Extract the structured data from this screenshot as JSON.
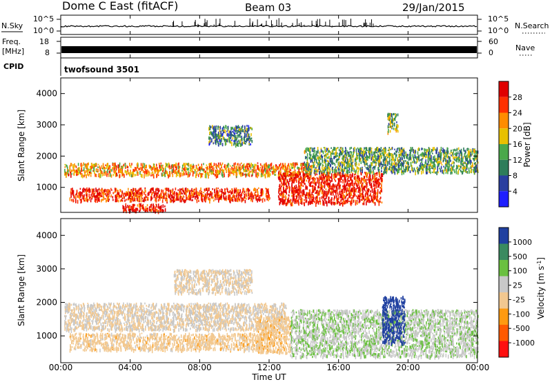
{
  "header": {
    "station": "Dome C East (fitACF)",
    "beam": "Beam 03",
    "date": "29/Jan/2015"
  },
  "noise_panel": {
    "left_label": "N.Sky",
    "right_label": "N.Search",
    "left_ticks": [
      "10^5",
      "10^0"
    ],
    "right_ticks": [
      "10^5",
      "10^0"
    ],
    "right_line_style": "dotted"
  },
  "freq_panel": {
    "left_label_1": "Freq.",
    "left_label_2": "[MHz]",
    "right_label": "Nave",
    "left_ticks": [
      "18",
      "8"
    ],
    "right_ticks": [
      "60",
      "0"
    ],
    "right_line_style": "dotted"
  },
  "cpid_panel": {
    "label": "CPID",
    "program": "twofsound 3501"
  },
  "x_axis": {
    "label": "Time UT",
    "ticks": [
      "00:00",
      "04:00",
      "08:00",
      "12:00",
      "16:00",
      "20:00",
      "00:00"
    ]
  },
  "colors": {
    "power_scale": [
      "#1f1fff",
      "#2a3f9f",
      "#2e7d5a",
      "#4aa84a",
      "#e8c000",
      "#ff8c00",
      "#ff3000",
      "#e00000"
    ],
    "velocity_scale": [
      "#ff1010",
      "#ff5a00",
      "#ff9a10",
      "#f2c890",
      "#c8c8c8",
      "#6ac040",
      "#3a8a60",
      "#2040a0"
    ]
  },
  "chart_data": [
    {
      "type": "heatmap",
      "title": "",
      "xlabel": "Time UT",
      "ylabel": "Slant Range [km]",
      "xlim": [
        "00:00",
        "24:00"
      ],
      "ylim": [
        200,
        4500
      ],
      "yticks": [
        "1000",
        "2000",
        "3000",
        "4000"
      ],
      "colorbar": {
        "label": "Power [dB]",
        "ticks": [
          "4",
          "8",
          "12",
          "16",
          "20",
          "24",
          "28"
        ],
        "range": [
          0,
          30
        ]
      },
      "regions": [
        {
          "t0": 0.2,
          "t1": 14.5,
          "r0": 1400,
          "r1": 1800,
          "value": 20
        },
        {
          "t0": 0.5,
          "t1": 12.0,
          "r0": 600,
          "r1": 1000,
          "value": 26
        },
        {
          "t0": 12.5,
          "t1": 18.5,
          "r0": 500,
          "r1": 1500,
          "value": 27
        },
        {
          "t0": 14.0,
          "t1": 24.0,
          "r0": 1500,
          "r1": 2300,
          "value": 12
        },
        {
          "t0": 3.5,
          "t1": 6.0,
          "r0": 250,
          "r1": 500,
          "value": 28
        },
        {
          "t0": 8.5,
          "t1": 11.0,
          "r0": 2400,
          "r1": 3000,
          "value": 10
        },
        {
          "t0": 18.8,
          "t1": 19.4,
          "r0": 2800,
          "r1": 3400,
          "value": 14
        }
      ]
    },
    {
      "type": "heatmap",
      "title": "",
      "xlabel": "Time UT",
      "ylabel": "Slant Range [km]",
      "xlim": [
        "00:00",
        "24:00"
      ],
      "ylim": [
        200,
        4500
      ],
      "yticks": [
        "1000",
        "2000",
        "3000",
        "4000"
      ],
      "colorbar": {
        "label": "Velocity [m s-1]",
        "label_main": "Velocity [m s",
        "label_sup": "-1",
        "label_end": "]",
        "ticks": [
          "1000",
          "500",
          "100",
          "25",
          "-25",
          "-100",
          "-500",
          "-1000"
        ],
        "range": [
          -1000,
          1000
        ]
      },
      "regions": [
        {
          "t0": 0.2,
          "t1": 13.0,
          "r0": 1200,
          "r1": 2000,
          "value": 0
        },
        {
          "t0": 0.5,
          "t1": 11.5,
          "r0": 600,
          "r1": 1100,
          "value": -120
        },
        {
          "t0": 11.3,
          "t1": 13.2,
          "r0": 500,
          "r1": 1600,
          "value": -150
        },
        {
          "t0": 13.2,
          "t1": 24.0,
          "r0": 400,
          "r1": 1800,
          "value": 200
        },
        {
          "t0": 18.5,
          "t1": 19.8,
          "r0": 800,
          "r1": 2200,
          "value": 900
        },
        {
          "t0": 6.5,
          "t1": 11.0,
          "r0": 2300,
          "r1": 3000,
          "value": 0
        }
      ]
    }
  ]
}
